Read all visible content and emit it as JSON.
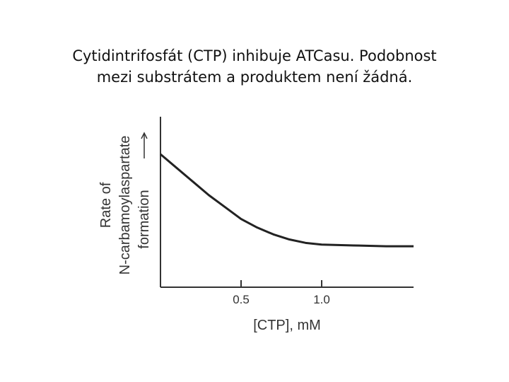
{
  "chart_data": {
    "type": "line",
    "title": [
      "Cytidintrifosfát (CTP) inhibuje ATCasu. Podobnost",
      "mezi substrátem a produktem není žádná."
    ],
    "xlabel": "[CTP], mM",
    "ylabel": [
      "Rate of",
      "N-carbamoylaspartate",
      "formation"
    ],
    "x": [
      0,
      0.1,
      0.2,
      0.3,
      0.4,
      0.5,
      0.6,
      0.7,
      0.8,
      0.9,
      1.0,
      1.2,
      1.4,
      1.57
    ],
    "series": [
      {
        "color": "#222222",
        "values": [
          0.78,
          0.7,
          0.62,
          0.54,
          0.47,
          0.4,
          0.35,
          0.31,
          0.28,
          0.26,
          0.25,
          0.245,
          0.24,
          0.24
        ]
      }
    ],
    "xlim": [
      0,
      1.57
    ],
    "ylim": [
      0,
      1
    ],
    "xticks": [
      0.5,
      {
        "value": 1,
        "label": "1.0"
      }
    ]
  }
}
